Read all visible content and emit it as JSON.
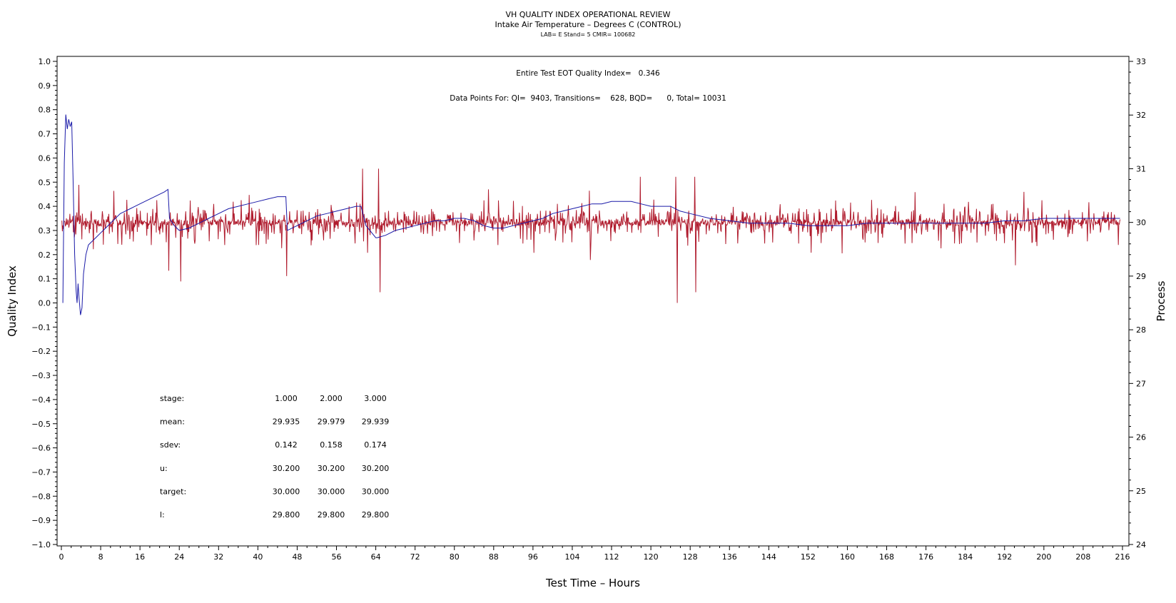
{
  "header": {
    "title": "VH QUALITY INDEX OPERATIONAL REVIEW",
    "subtitle": "Intake Air Temperature – Degrees C (CONTROL)",
    "info_line": "LAB= E Stand= 5 CMIR= 100682"
  },
  "annotations": {
    "eot_quality": "Entire Test EOT Quality Index=   0.346",
    "data_points": "Data Points For: QI=  9403, Transitions=    628, BQD=      0, Total= 10031"
  },
  "stats_table": {
    "rows": [
      {
        "label": "stage:",
        "values": [
          "1.000",
          "2.000",
          "3.000"
        ]
      },
      {
        "label": "mean:",
        "values": [
          "29.935",
          "29.979",
          "29.939"
        ]
      },
      {
        "label": "sdev:",
        "values": [
          "0.142",
          "0.158",
          "0.174"
        ]
      },
      {
        "label": "u:",
        "values": [
          "30.200",
          "30.200",
          "30.200"
        ]
      },
      {
        "label": "target:",
        "values": [
          "30.000",
          "30.000",
          "30.000"
        ]
      },
      {
        "label": "l:",
        "values": [
          "29.800",
          "29.800",
          "29.800"
        ]
      }
    ]
  },
  "colors": {
    "process_series": "#b01c2e",
    "quality_series": "#1a1aa8",
    "axis": "#000000"
  },
  "chart_data": {
    "type": "line",
    "xlabel": "Test Time – Hours",
    "ylabel": "Quality Index",
    "y2label": "Process",
    "xlim": [
      0,
      216
    ],
    "ylim": [
      -1.0,
      1.0
    ],
    "y2lim": [
      24,
      33
    ],
    "x_ticks": [
      0,
      8,
      16,
      24,
      32,
      40,
      48,
      56,
      64,
      72,
      80,
      88,
      96,
      104,
      112,
      120,
      128,
      136,
      144,
      152,
      160,
      168,
      176,
      184,
      192,
      200,
      208,
      216
    ],
    "y_ticks": [
      "-1.0",
      "-0.9",
      "-0.8",
      "-0.7",
      "-0.6",
      "-0.5",
      "-0.4",
      "-0.3",
      "-0.2",
      "-0.1",
      "0.0",
      "0.1",
      "0.2",
      "0.3",
      "0.4",
      "0.5",
      "0.6",
      "0.7",
      "0.8",
      "0.9",
      "1.0"
    ],
    "y2_ticks": [
      24,
      25,
      26,
      27,
      28,
      29,
      30,
      31,
      32,
      33
    ],
    "grid": false,
    "series": [
      {
        "axis": "right",
        "style": "noisy-process",
        "baseline": 30.0,
        "spikes": [
          {
            "x": 3.5,
            "y": 30.7
          },
          {
            "x": 6.5,
            "y": 29.5
          },
          {
            "x": 21.8,
            "y": 29.1
          },
          {
            "x": 24.2,
            "y": 28.9
          },
          {
            "x": 45.8,
            "y": 30.95
          },
          {
            "x": 45.8,
            "y": 29.0
          },
          {
            "x": 61.3,
            "y": 31.0
          },
          {
            "x": 64.5,
            "y": 31.0
          },
          {
            "x": 64.8,
            "y": 28.7
          },
          {
            "x": 107.6,
            "y": 29.3
          },
          {
            "x": 117.8,
            "y": 30.85
          },
          {
            "x": 125.0,
            "y": 30.85
          },
          {
            "x": 125.3,
            "y": 28.5
          },
          {
            "x": 128.9,
            "y": 30.85
          },
          {
            "x": 129.1,
            "y": 28.7
          },
          {
            "x": 194.2,
            "y": 29.2
          }
        ]
      },
      {
        "axis": "left",
        "style": "quality-index",
        "x": [
          0.3,
          0.6,
          0.9,
          1.2,
          1.5,
          1.8,
          2.1,
          2.4,
          2.7,
          3.0,
          3.2,
          3.4,
          3.6,
          3.9,
          4.2,
          4.5,
          5.0,
          5.5,
          6.0,
          7.0,
          8.0,
          9.0,
          10.0,
          11.0,
          12.0,
          13.0,
          14.0,
          15.0,
          16.0,
          17.0,
          18.0,
          19.0,
          20.0,
          21.0,
          21.7,
          22.0,
          23.0,
          24.0,
          26.0,
          28.0,
          30.0,
          32.0,
          34.0,
          36.0,
          38.0,
          40.0,
          42.0,
          44.0,
          45.7,
          46.0,
          48.0,
          50.0,
          52.0,
          54.0,
          56.0,
          58.0,
          60.0,
          61.0,
          62.0,
          64.0,
          64.3,
          66.0,
          68.0,
          70.0,
          72.0,
          74.0,
          76.0,
          78.0,
          80.0,
          82.0,
          84.0,
          86.0,
          88.0,
          90.0,
          92.0,
          94.0,
          96.0,
          98.0,
          100.0,
          102.0,
          104.0,
          106.0,
          108.0,
          110.0,
          112.0,
          114.0,
          116.0,
          118.0,
          120.0,
          122.0,
          124.0,
          126.0,
          128.0,
          132.0,
          136.0,
          140.0,
          144.0,
          148.0,
          152.0,
          156.0,
          160.0,
          164.0,
          168.0,
          172.0,
          176.0,
          180.0,
          184.0,
          188.0,
          192.0,
          196.0,
          200.0,
          204.0,
          208.0,
          212.0,
          215.5
        ],
        "values": [
          0.0,
          0.58,
          0.78,
          0.72,
          0.76,
          0.73,
          0.75,
          0.5,
          0.2,
          0.05,
          0.0,
          0.08,
          0.02,
          -0.05,
          -0.02,
          0.12,
          0.2,
          0.24,
          0.25,
          0.27,
          0.29,
          0.31,
          0.33,
          0.35,
          0.37,
          0.38,
          0.39,
          0.4,
          0.41,
          0.42,
          0.43,
          0.44,
          0.45,
          0.46,
          0.47,
          0.35,
          0.32,
          0.3,
          0.31,
          0.33,
          0.35,
          0.37,
          0.39,
          0.4,
          0.41,
          0.42,
          0.43,
          0.44,
          0.44,
          0.3,
          0.32,
          0.34,
          0.36,
          0.37,
          0.38,
          0.39,
          0.4,
          0.4,
          0.32,
          0.27,
          0.27,
          0.28,
          0.3,
          0.31,
          0.32,
          0.33,
          0.34,
          0.34,
          0.35,
          0.35,
          0.34,
          0.32,
          0.31,
          0.31,
          0.32,
          0.33,
          0.34,
          0.35,
          0.37,
          0.38,
          0.39,
          0.4,
          0.41,
          0.41,
          0.42,
          0.42,
          0.42,
          0.41,
          0.4,
          0.4,
          0.4,
          0.38,
          0.37,
          0.35,
          0.34,
          0.33,
          0.33,
          0.33,
          0.32,
          0.32,
          0.32,
          0.33,
          0.33,
          0.33,
          0.33,
          0.33,
          0.33,
          0.33,
          0.34,
          0.34,
          0.35,
          0.35,
          0.35,
          0.35,
          0.35
        ]
      }
    ]
  }
}
